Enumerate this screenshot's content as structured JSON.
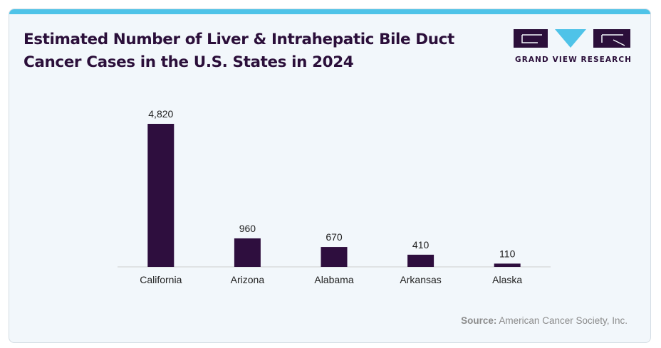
{
  "title": "Estimated Number of Liver & Intrahepatic Bile Duct Cancer Cases in the U.S. States  in 2024",
  "logo": {
    "text": "GRAND VIEW RESEARCH"
  },
  "source": {
    "label": "Source:",
    "text": "American Cancer Society, Inc."
  },
  "colors": {
    "bar": "#2e0e3e",
    "accent": "#4fc3e8",
    "title": "#2b0f3a",
    "background": "#f2f7fb"
  },
  "chart_data": {
    "type": "bar",
    "categories": [
      "California",
      "Arizona",
      "Alabama",
      "Arkansas",
      "Alaska"
    ],
    "values": [
      4820,
      960,
      670,
      410,
      110
    ],
    "data_labels": [
      "4,820",
      "960",
      "670",
      "410",
      "110"
    ],
    "title": "Estimated Number of Liver & Intrahepatic Bile Duct Cancer Cases in the U.S. States  in 2024",
    "xlabel": "",
    "ylabel": "",
    "ylim": [
      0,
      4820
    ],
    "grid": false,
    "legend": "none"
  }
}
